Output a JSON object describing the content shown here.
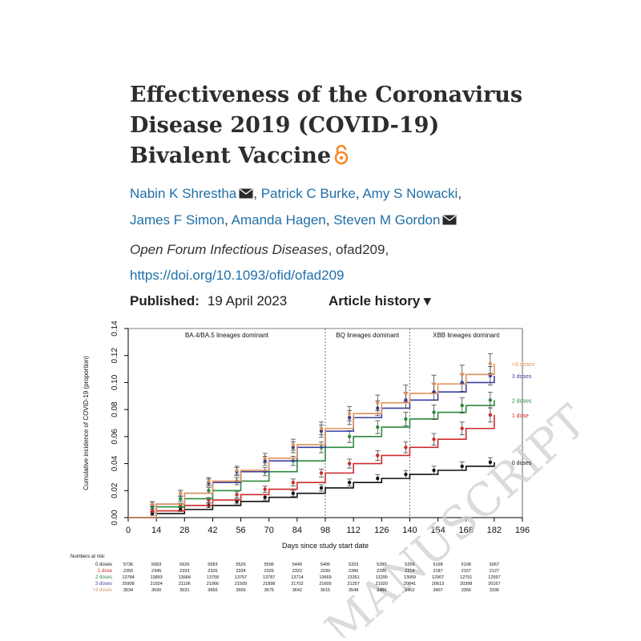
{
  "article": {
    "title_lines": [
      "Effectiveness of the Coronavirus",
      "Disease 2019 (COVID-19)",
      "Bivalent Vaccine"
    ],
    "open_access_icon": "open-lock-icon",
    "authors": [
      {
        "name": "Nabin K Shrestha",
        "mail": true
      },
      {
        "name": "Patrick C Burke",
        "mail": false
      },
      {
        "name": "Amy S Nowacki",
        "mail": false
      },
      {
        "name": "James F Simon",
        "mail": false
      },
      {
        "name": "Amanda Hagen",
        "mail": false
      },
      {
        "name": "Steven M Gordon",
        "mail": true
      }
    ],
    "journal": "Open Forum Infectious Diseases",
    "article_id": ", ofad209,",
    "doi": "https://doi.org/10.1093/ofid/ofad209",
    "published_label": "Published:",
    "published_date": "19 April 2023",
    "history_label": "Article history",
    "history_arrow": "▾",
    "accent_color": "#1f6fa8"
  },
  "chart_data": {
    "type": "line",
    "xlabel": "Days since study start date",
    "ylabel": "Cumulative incidence of COVID-19 (proportion)",
    "x_ticks": [
      0,
      14,
      28,
      42,
      56,
      70,
      84,
      98,
      112,
      126,
      140,
      154,
      168,
      182,
      196
    ],
    "y_ticks": [
      "0.00",
      "0.02",
      "0.04",
      "0.06",
      "0.08",
      "0.10",
      "0.12",
      "0.14"
    ],
    "xlim": [
      0,
      196
    ],
    "ylim": [
      0,
      0.14
    ],
    "periods": [
      "BA.4/BA.5 lineages dominant",
      "BQ lineages dominant",
      "XBB lineages dominant"
    ],
    "period_boundaries": [
      98,
      140
    ],
    "watermark": "MANUSCRIPT",
    "series": [
      {
        "name": "0 doses",
        "color": "#111111",
        "points": [
          [
            0,
            0
          ],
          [
            14,
            0.003
          ],
          [
            28,
            0.006
          ],
          [
            42,
            0.009
          ],
          [
            56,
            0.012
          ],
          [
            70,
            0.015
          ],
          [
            84,
            0.018
          ],
          [
            98,
            0.022
          ],
          [
            112,
            0.026
          ],
          [
            126,
            0.029
          ],
          [
            140,
            0.032
          ],
          [
            154,
            0.035
          ],
          [
            168,
            0.038
          ],
          [
            182,
            0.041
          ]
        ]
      },
      {
        "name": "1 dose",
        "color": "#cc2a2a",
        "points": [
          [
            0,
            0
          ],
          [
            14,
            0.005
          ],
          [
            28,
            0.009
          ],
          [
            42,
            0.013
          ],
          [
            56,
            0.017
          ],
          [
            70,
            0.021
          ],
          [
            84,
            0.026
          ],
          [
            98,
            0.033
          ],
          [
            112,
            0.04
          ],
          [
            126,
            0.046
          ],
          [
            140,
            0.052
          ],
          [
            154,
            0.058
          ],
          [
            168,
            0.066
          ],
          [
            182,
            0.076
          ]
        ]
      },
      {
        "name": "2 doses",
        "color": "#2a8a3c",
        "points": [
          [
            0,
            0
          ],
          [
            14,
            0.008
          ],
          [
            28,
            0.014
          ],
          [
            42,
            0.02
          ],
          [
            56,
            0.027
          ],
          [
            70,
            0.034
          ],
          [
            84,
            0.042
          ],
          [
            98,
            0.052
          ],
          [
            112,
            0.06
          ],
          [
            126,
            0.067
          ],
          [
            140,
            0.073
          ],
          [
            154,
            0.078
          ],
          [
            168,
            0.083
          ],
          [
            182,
            0.087
          ]
        ]
      },
      {
        "name": "3 doses",
        "color": "#3a3fa0",
        "points": [
          [
            0,
            0
          ],
          [
            14,
            0.01
          ],
          [
            28,
            0.018
          ],
          [
            42,
            0.026
          ],
          [
            56,
            0.034
          ],
          [
            70,
            0.042
          ],
          [
            84,
            0.052
          ],
          [
            98,
            0.064
          ],
          [
            112,
            0.074
          ],
          [
            126,
            0.081
          ],
          [
            140,
            0.087
          ],
          [
            154,
            0.093
          ],
          [
            168,
            0.1
          ],
          [
            182,
            0.105
          ]
        ]
      },
      {
        "name": ">3 doses",
        "color": "#e0915c",
        "points": [
          [
            0,
            0
          ],
          [
            14,
            0.01
          ],
          [
            28,
            0.018
          ],
          [
            42,
            0.027
          ],
          [
            56,
            0.035
          ],
          [
            70,
            0.044
          ],
          [
            84,
            0.054
          ],
          [
            98,
            0.066
          ],
          [
            112,
            0.077
          ],
          [
            126,
            0.085
          ],
          [
            140,
            0.092
          ],
          [
            154,
            0.099
          ],
          [
            168,
            0.106
          ],
          [
            182,
            0.114
          ]
        ]
      }
    ],
    "at_risk_title": "Numbers at risk:",
    "at_risk": [
      {
        "label": "0 doses",
        "color": "#111111",
        "values": [
          "5736",
          "5683",
          "5626",
          "5583",
          "5526",
          "5506",
          "5449",
          "5406",
          "5333",
          "5280",
          "5256",
          "5198",
          "5108",
          "5067"
        ]
      },
      {
        "label": "1 dose",
        "color": "#cc2a2a",
        "values": [
          "2350",
          "2345",
          "2333",
          "2326",
          "2334",
          "2326",
          "2322",
          "2299",
          "2286",
          "2226",
          "2214",
          "2187",
          "2157",
          "2127"
        ]
      },
      {
        "label": "2 doses",
        "color": "#2a8a3c",
        "values": [
          "13784",
          "13893",
          "13684",
          "13758",
          "13757",
          "13787",
          "13714",
          "13669",
          "13351",
          "13295",
          "13059",
          "12907",
          "12751",
          "12597"
        ]
      },
      {
        "label": "3 doses",
        "color": "#3a3fa0",
        "values": [
          "25908",
          "21924",
          "21106",
          "21966",
          "21509",
          "21898",
          "21702",
          "21605",
          "21257",
          "21020",
          "20841",
          "20613",
          "20398",
          "20167"
        ]
      },
      {
        "label": ">3 doses",
        "color": "#e0915c",
        "values": [
          "3634",
          "3630",
          "3631",
          "3656",
          "3665",
          "3675",
          "3642",
          "3615",
          "3548",
          "3486",
          "3452",
          "3407",
          "3366",
          "3336"
        ]
      }
    ]
  }
}
